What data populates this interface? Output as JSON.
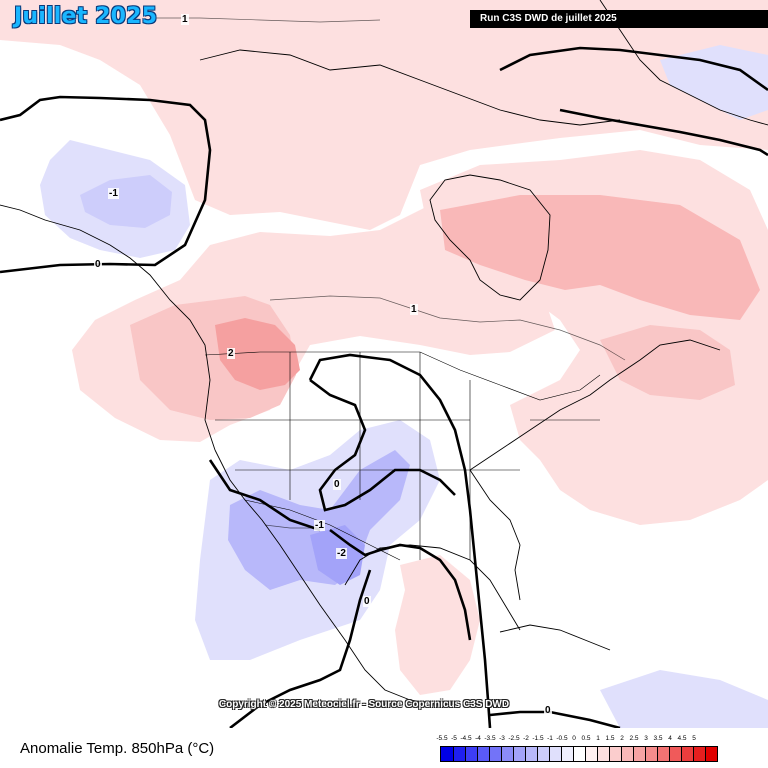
{
  "map": {
    "title": "Juillet 2025",
    "run_label": "Run C3S DWD de juillet 2025",
    "copyright": "Copyright © 2025 Meteociel.fr - Source Copernicus C3S DWD",
    "variable_label": "Anomalie Temp. 850hPa (°C)"
  },
  "contour_labels": [
    "1",
    "-1",
    "0",
    "1",
    "2",
    "0",
    "-1",
    "-2",
    "0",
    "0"
  ],
  "legend": {
    "tick_labels": [
      "-5.5",
      "-5",
      "-4.5",
      "-4",
      "-3.5",
      "-3",
      "-2.5",
      "-2",
      "-1.5",
      "-1",
      "-0.5",
      "0",
      "0.5",
      "1",
      "1.5",
      "2",
      "2.5",
      "3",
      "3.5",
      "4",
      "4.5",
      "5"
    ],
    "colors": [
      "#0000e6",
      "#1f1ff0",
      "#3d3df5",
      "#5a5af7",
      "#7373f8",
      "#8c8cf8",
      "#a3a3f9",
      "#b8b8fa",
      "#cdcdfb",
      "#e0e0fc",
      "#f0f0fe",
      "#ffffff",
      "#fff0f0",
      "#fde0e0",
      "#fbcdcd",
      "#f9b8b8",
      "#f7a3a3",
      "#f58c8c",
      "#f37373",
      "#f05a5a",
      "#ec3d3d",
      "#e61f1f",
      "#e00000"
    ]
  },
  "colors": {
    "land_outline": "#000000",
    "ocean": "#ffffff",
    "warm_light": "#fde0e0",
    "warm_medium": "#f9b8b8",
    "cool_light": "#e0e0fc",
    "cool_medium": "#b8b8fa"
  }
}
